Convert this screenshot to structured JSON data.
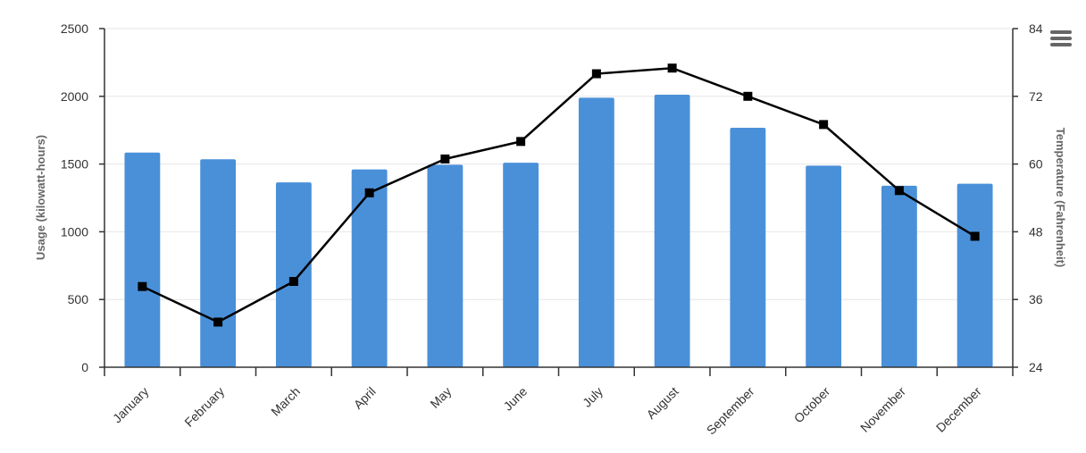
{
  "chart_data": {
    "type": "bar",
    "categories": [
      "January",
      "February",
      "March",
      "April",
      "May",
      "June",
      "July",
      "August",
      "September",
      "October",
      "November",
      "December"
    ],
    "series": [
      {
        "kind": "bar",
        "axis": "left",
        "color": "#4a90d9",
        "values": [
          1585,
          1535,
          1365,
          1460,
          1495,
          1510,
          1990,
          2012,
          1768,
          1488,
          1340,
          1355
        ]
      },
      {
        "kind": "line",
        "axis": "right",
        "color": "#000000",
        "marker": "square",
        "values": [
          38.3,
          32.0,
          39.2,
          54.9,
          60.9,
          64.0,
          76.0,
          77.0,
          72.0,
          67.0,
          55.3,
          47.2
        ]
      }
    ],
    "ylabel": "Usage (kilowatt-hours)",
    "y2label": "Temperature (Fahrenheit)",
    "ylim": [
      0,
      2500
    ],
    "y2lim": [
      24,
      84
    ],
    "yticks": [
      "0",
      "500",
      "1000",
      "1500",
      "2000",
      "2500"
    ],
    "y2ticks": [
      "24",
      "36",
      "48",
      "60",
      "72",
      "84"
    ],
    "grid": true,
    "menu_icon": "hamburger-menu-icon"
  }
}
